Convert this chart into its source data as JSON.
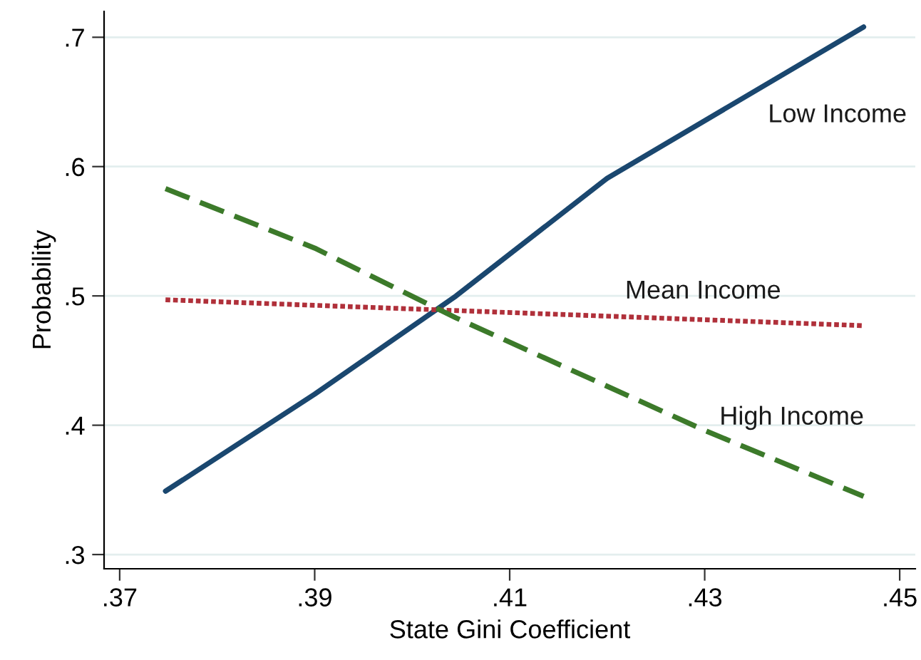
{
  "chart_data": {
    "type": "line",
    "xlabel": "State Gini Coefficient",
    "ylabel": "Probability",
    "xlim": [
      0.3684,
      0.4516
    ],
    "ylim": [
      0.289,
      0.72
    ],
    "xticks": [
      {
        "value": 0.37,
        "label": ".37"
      },
      {
        "value": 0.39,
        "label": ".39"
      },
      {
        "value": 0.41,
        "label": ".41"
      },
      {
        "value": 0.43,
        "label": ".43"
      },
      {
        "value": 0.45,
        "label": ".45"
      }
    ],
    "yticks": [
      {
        "value": 0.3,
        "label": ".3"
      },
      {
        "value": 0.4,
        "label": ".4"
      },
      {
        "value": 0.5,
        "label": ".5"
      },
      {
        "value": 0.6,
        "label": ".6"
      },
      {
        "value": 0.7,
        "label": ".7"
      }
    ],
    "grid": "y",
    "legend": false,
    "series": [
      {
        "name": "Low Income",
        "color": "#1a476f",
        "line_style": "solid",
        "x": [
          0.3747,
          0.39,
          0.4045,
          0.42,
          0.4463
        ],
        "values": [
          0.349,
          0.424,
          0.5,
          0.591,
          0.708
        ]
      },
      {
        "name": "Mean Income",
        "color": "#b0303a",
        "line_style": "dotted",
        "x": [
          0.3747,
          0.4463
        ],
        "values": [
          0.497,
          0.477
        ]
      },
      {
        "name": "High Income",
        "color": "#3c7a2a",
        "line_style": "dashed",
        "x": [
          0.3747,
          0.39,
          0.4045,
          0.43,
          0.4463
        ],
        "values": [
          0.583,
          0.537,
          0.483,
          0.396,
          0.345
        ]
      }
    ]
  }
}
